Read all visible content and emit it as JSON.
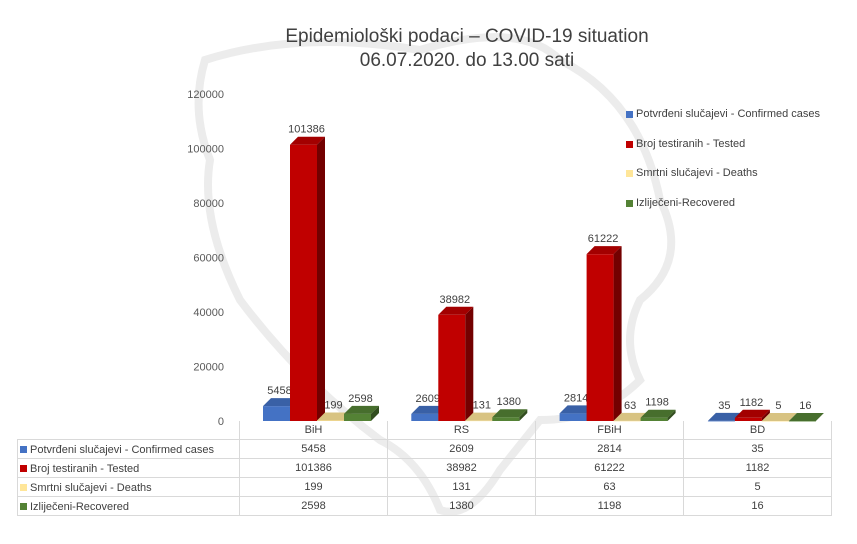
{
  "chart_data": {
    "type": "bar",
    "title": "Epidemiološki podaci – COVID-19 situation",
    "subtitle": "06.07.2020. do 13.00 sati",
    "categories": [
      "BiH",
      "RS",
      "FBiH",
      "BD"
    ],
    "series": [
      {
        "name": "Potvrđeni slučajevi - Confirmed cases",
        "color": "#4472c4",
        "values": [
          5458,
          2609,
          2814,
          35
        ]
      },
      {
        "name": "Broj testiranih - Tested",
        "color": "#c00000",
        "values": [
          101386,
          38982,
          61222,
          1182
        ]
      },
      {
        "name": "Smrtni slučajevi - Deaths",
        "color": "#ffe699",
        "values": [
          199,
          131,
          63,
          5
        ]
      },
      {
        "name": "Izliječeni-Recovered",
        "color": "#548235",
        "values": [
          2598,
          1380,
          1198,
          16
        ]
      }
    ],
    "ylim": [
      0,
      120000
    ],
    "yticks": [
      "0",
      "20000",
      "40000",
      "60000",
      "80000",
      "100000",
      "120000"
    ],
    "legend_position": "right",
    "data_table": true
  }
}
